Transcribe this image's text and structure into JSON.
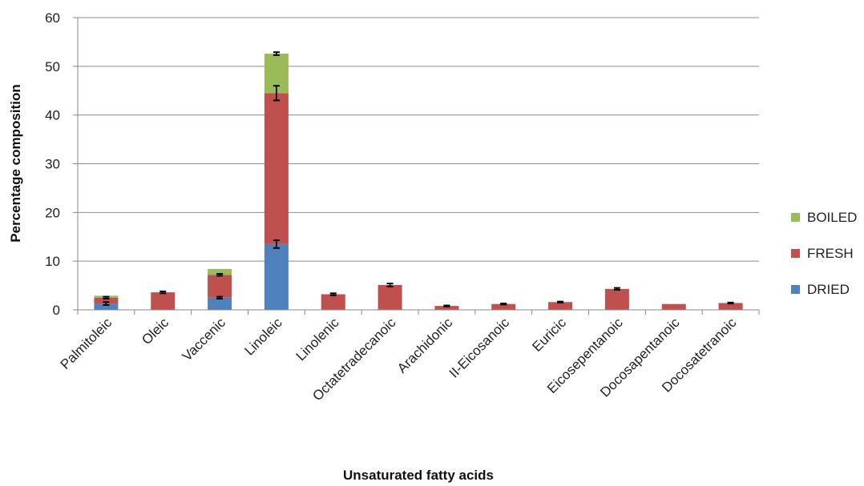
{
  "chart_data": {
    "type": "bar",
    "stacked": true,
    "title": "",
    "xlabel": "Unsaturated fatty acids",
    "ylabel": "Percentage composition",
    "ylim": [
      0,
      60
    ],
    "yticks": [
      "0",
      "10",
      "20",
      "30",
      "40",
      "50",
      "60"
    ],
    "grid": true,
    "legend_position": "right",
    "categories": [
      "Palmitoleic",
      "Oleic",
      "Vaccenic",
      "Linoleic",
      "Linolenic",
      "Octatetradecanoic",
      "Arachidonic",
      "II-Eicosanoic",
      "Euricic",
      "Eicosepentanoic",
      "Docosapentanoic",
      "Docosatetranoic"
    ],
    "series": [
      {
        "name": "DRIED",
        "color": "#4f81bd",
        "values": [
          1.3,
          0,
          2.5,
          13.5,
          0,
          0,
          0,
          0,
          0,
          0,
          0,
          0
        ],
        "errors": [
          0.3,
          null,
          0.2,
          0.8,
          null,
          null,
          null,
          null,
          null,
          null,
          null,
          null
        ]
      },
      {
        "name": "FRESH",
        "color": "#c0504d",
        "values": [
          1.2,
          3.6,
          4.7,
          31.0,
          3.2,
          5.1,
          0.8,
          1.2,
          1.6,
          4.3,
          1.2,
          1.4
        ],
        "errors": [
          0.2,
          0.2,
          0.2,
          1.5,
          0.2,
          0.3,
          0.1,
          0.1,
          0.1,
          0.2,
          null,
          0.1
        ]
      },
      {
        "name": "BOILED",
        "color": "#9bbb59",
        "values": [
          0.4,
          0,
          1.2,
          8.1,
          0,
          0,
          0,
          0,
          0,
          0,
          0,
          0
        ],
        "errors": [
          null,
          null,
          null,
          0.3,
          null,
          null,
          null,
          null,
          null,
          null,
          null,
          null
        ]
      }
    ]
  }
}
